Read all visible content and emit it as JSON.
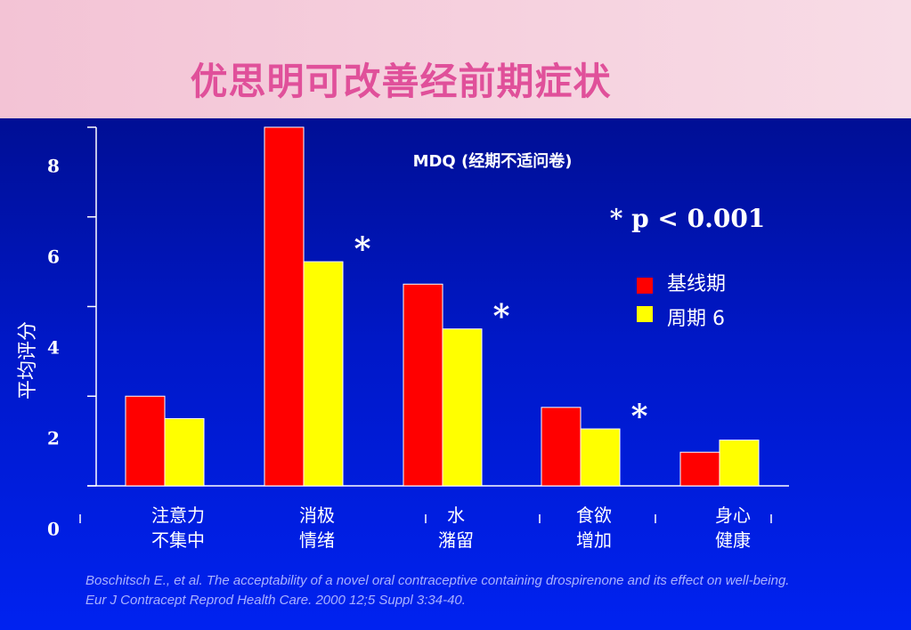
{
  "header": {
    "title": "优思明可改善经前期症状"
  },
  "chart_data": {
    "type": "bar",
    "subtitle": "MDQ (经期不适问卷)",
    "note": "* p < 0.001",
    "ylabel": "平均评分",
    "yticks": [
      "0",
      "2",
      "4",
      "6",
      "8"
    ],
    "ylim": [
      0,
      8
    ],
    "categories": [
      [
        "注意力",
        "不集中"
      ],
      [
        "消极",
        "情绪"
      ],
      [
        "水",
        "潴留"
      ],
      [
        "食欲",
        "增加"
      ],
      [
        "身心",
        "健康"
      ]
    ],
    "series": [
      {
        "name": "基线期",
        "color": "#ff0000",
        "values": [
          2.0,
          8.0,
          4.5,
          1.75,
          0.75
        ]
      },
      {
        "name": "周期 6",
        "color": "#ffff00",
        "values": [
          1.5,
          5.0,
          3.5,
          1.27,
          1.02
        ]
      }
    ],
    "significance_marker": "*",
    "significant": [
      false,
      true,
      true,
      true,
      false
    ]
  },
  "citation": "Boschitsch E., et al. The acceptability of a novel oral contraceptive containing drospirenone and its effect on well-being. Eur J Contracept Reprod Health Care. 2000 12;5 Suppl 3:34-40."
}
